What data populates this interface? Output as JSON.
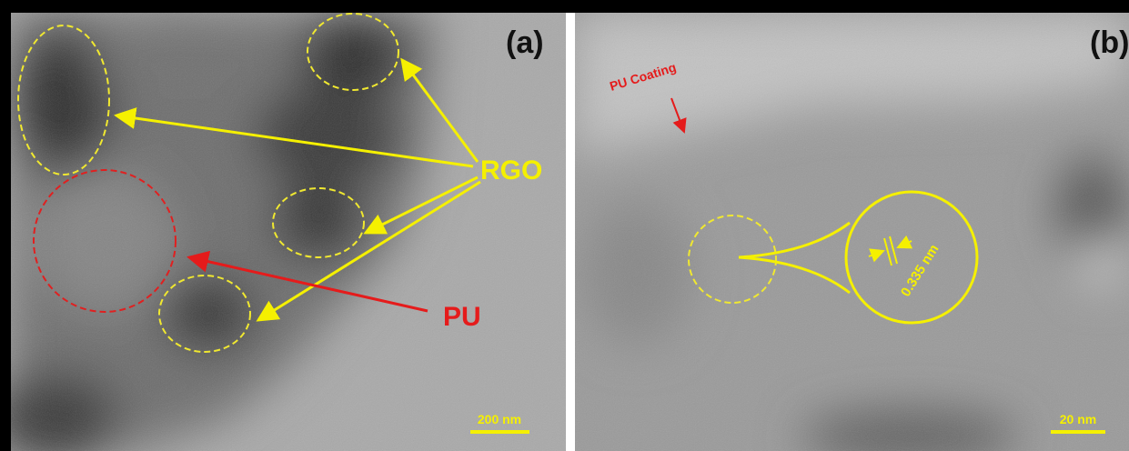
{
  "panels": [
    {
      "label": "(a)",
      "annotations": {
        "rgo": "RGO",
        "pu": "PU"
      },
      "scale_bar": "200 nm"
    },
    {
      "label": "(b)",
      "annotation": "PU Coating",
      "lattice_spacing": "0.335 nm",
      "scale_bar": "20 nm"
    }
  ]
}
